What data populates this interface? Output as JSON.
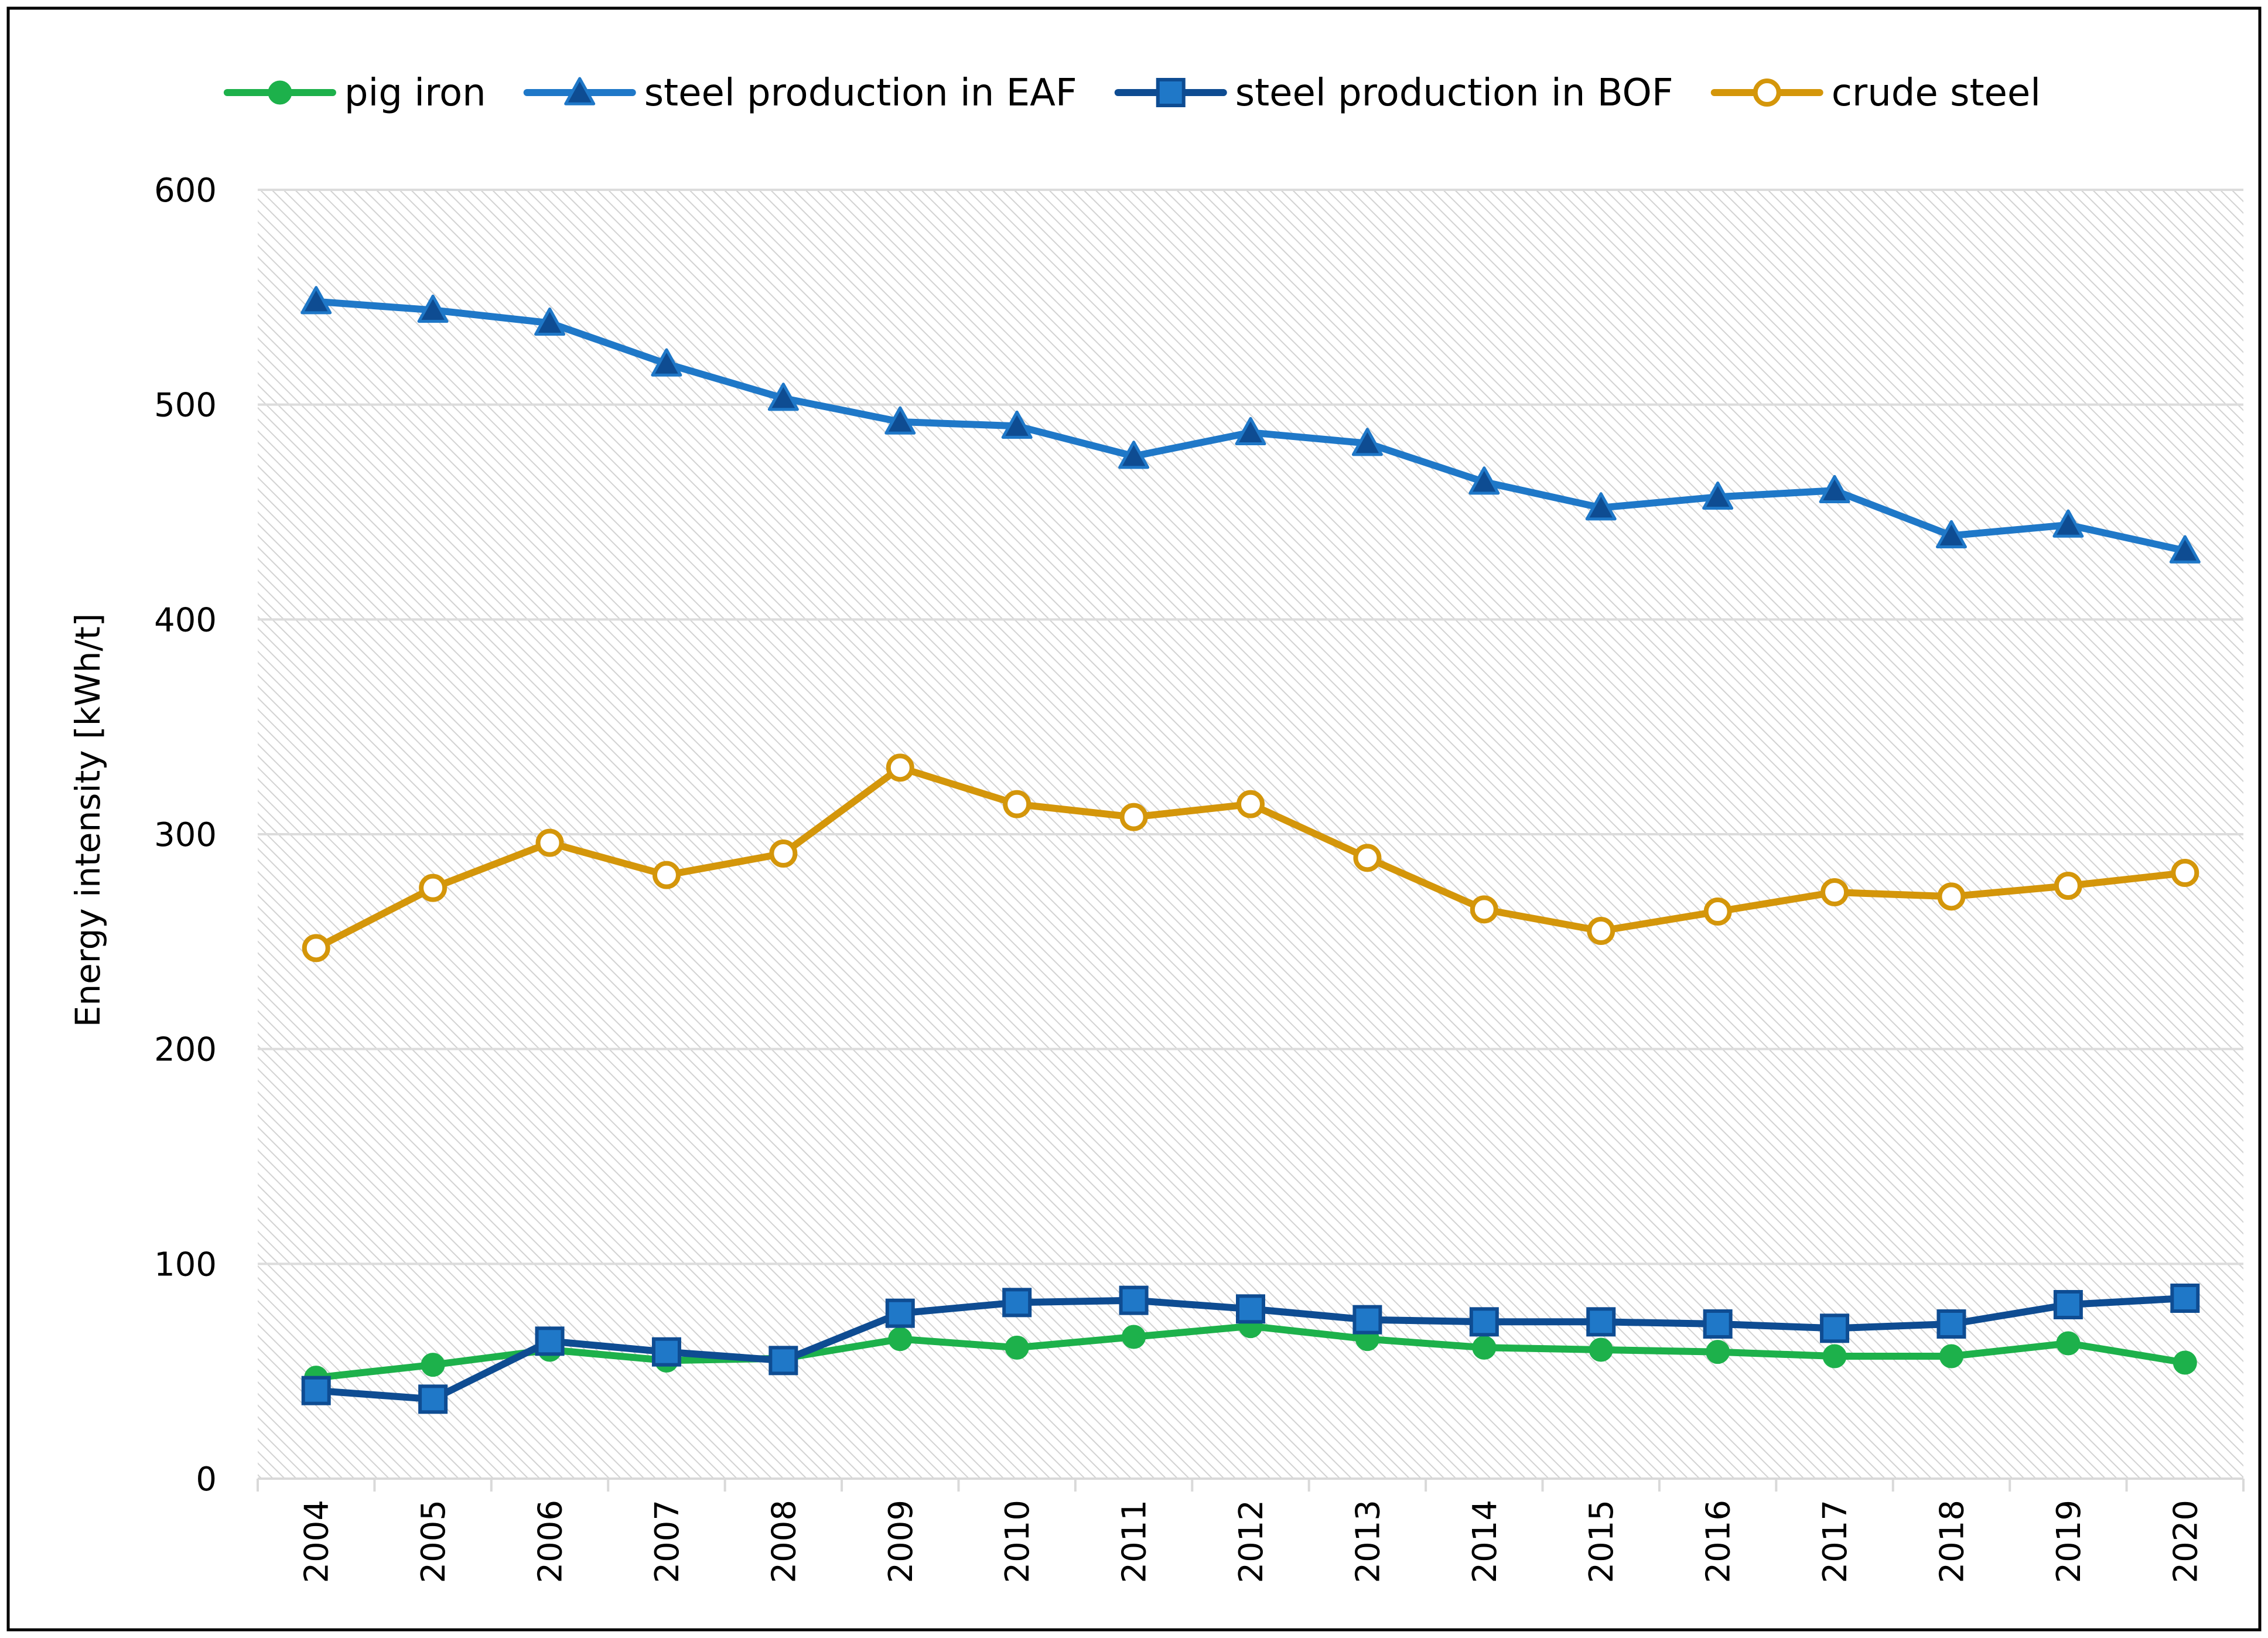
{
  "chart_data": {
    "type": "line",
    "title": "",
    "xlabel": "",
    "ylabel": "Energy intensity [kWh/t]",
    "ylim": [
      0,
      600
    ],
    "yticks": [
      0,
      100,
      200,
      300,
      400,
      500,
      600
    ],
    "grid": true,
    "legend_position": "top",
    "categories": [
      "2004",
      "2005",
      "2006",
      "2007",
      "2008",
      "2009",
      "2010",
      "2011",
      "2012",
      "2013",
      "2014",
      "2015",
      "2016",
      "2017",
      "2018",
      "2019",
      "2020"
    ],
    "series": [
      {
        "name": "pig iron",
        "color": "#1DB14B",
        "marker": "filled-circle",
        "values": [
          47,
          53,
          60,
          55,
          56,
          65,
          61,
          66,
          71,
          65,
          61,
          60,
          59,
          57,
          57,
          63,
          54
        ]
      },
      {
        "name": "steel production in EAF",
        "color": "#1F78C8",
        "marker": "triangle",
        "values": [
          548,
          544,
          538,
          519,
          503,
          492,
          490,
          476,
          487,
          482,
          464,
          452,
          457,
          460,
          439,
          444,
          432
        ]
      },
      {
        "name": "steel production in BOF",
        "color": "#0E4C92",
        "marker": "square",
        "values": [
          41,
          37,
          64,
          59,
          55,
          77,
          82,
          83,
          79,
          74,
          73,
          73,
          72,
          70,
          72,
          81,
          84
        ]
      },
      {
        "name": "crude steel",
        "color": "#D4960A",
        "marker": "open-circle",
        "values": [
          247,
          275,
          296,
          281,
          291,
          331,
          314,
          308,
          314,
          289,
          265,
          255,
          264,
          273,
          271,
          276,
          282
        ]
      }
    ]
  }
}
